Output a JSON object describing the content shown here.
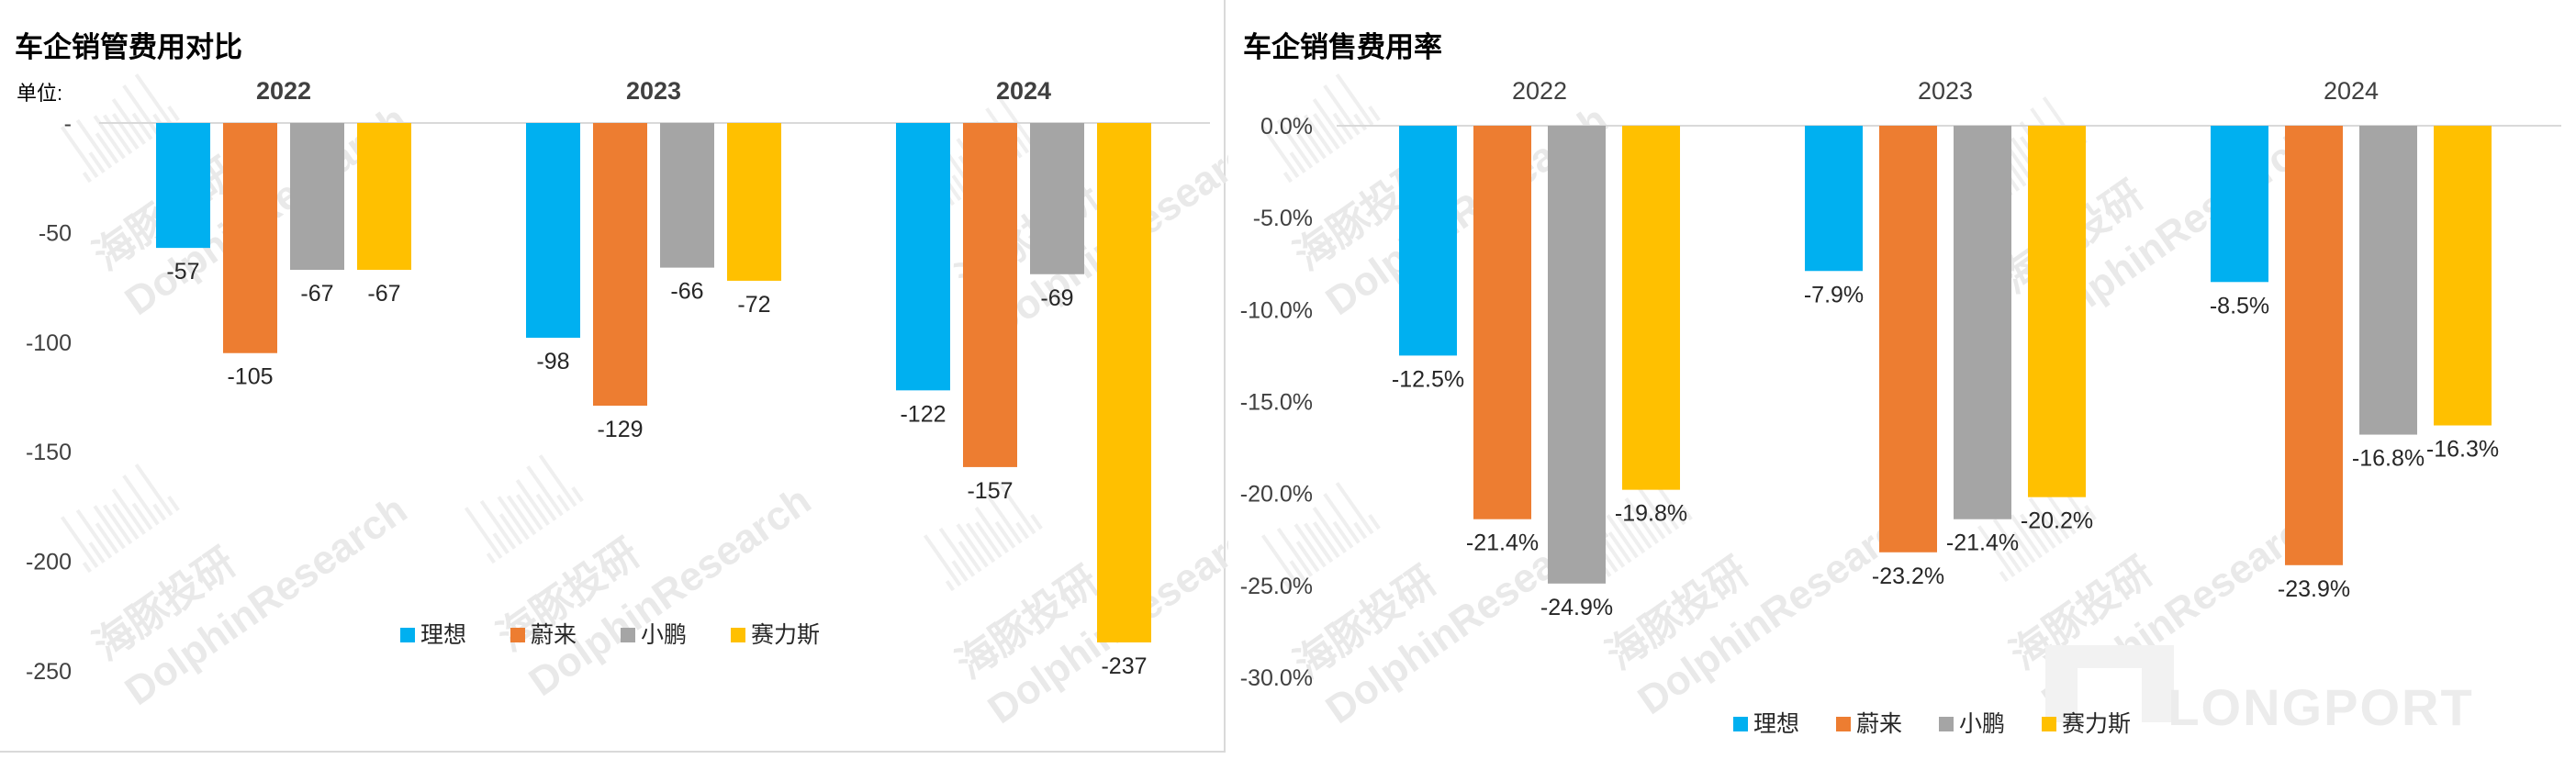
{
  "chart_data": [
    {
      "type": "bar",
      "title": "车企销管费用对比",
      "unit_label": "单位:",
      "groups": [
        "2022",
        "2023",
        "2024"
      ],
      "series": [
        {
          "name": "理想",
          "color": "#00b0f0",
          "values": [
            -57,
            -98,
            -122
          ],
          "labels": [
            "-57",
            "-98",
            "-122"
          ]
        },
        {
          "name": "蔚来",
          "color": "#ed7d31",
          "values": [
            -105,
            -129,
            -157
          ],
          "labels": [
            "-105",
            "-129",
            "-157"
          ]
        },
        {
          "name": "小鹏",
          "color": "#a5a5a5",
          "values": [
            -67,
            -66,
            -69
          ],
          "labels": [
            "-67",
            "-66",
            "-69"
          ]
        },
        {
          "name": "赛力斯",
          "color": "#ffc000",
          "values": [
            -67,
            -72,
            -237
          ],
          "labels": [
            "-67",
            "-72",
            "-237"
          ]
        }
      ],
      "ylim": [
        -250,
        0
      ],
      "yticks": [
        0,
        -50,
        -100,
        -150,
        -200,
        -250
      ],
      "ytick_labels": [
        "-",
        "-50",
        "-100",
        "-150",
        "-200",
        "-250"
      ],
      "legend_position": "bottom-center",
      "grid": false
    },
    {
      "type": "bar",
      "title": "车企销售费用率",
      "groups": [
        "2022",
        "2023",
        "2024"
      ],
      "series": [
        {
          "name": "理想",
          "color": "#00b0f0",
          "values": [
            -12.5,
            -7.9,
            -8.5
          ],
          "labels": [
            "-12.5%",
            "-7.9%",
            "-8.5%"
          ]
        },
        {
          "name": "蔚来",
          "color": "#ed7d31",
          "values": [
            -21.4,
            -23.2,
            -23.9
          ],
          "labels": [
            "-21.4%",
            "-23.2%",
            "-23.9%"
          ]
        },
        {
          "name": "小鹏",
          "color": "#a5a5a5",
          "values": [
            -24.9,
            -21.4,
            -16.8
          ],
          "labels": [
            "-24.9%",
            "-21.4%",
            "-16.8%"
          ]
        },
        {
          "name": "赛力斯",
          "color": "#ffc000",
          "values": [
            -19.8,
            -20.2,
            -16.3
          ],
          "labels": [
            "-19.8%",
            "-20.2%",
            "-16.3%"
          ]
        }
      ],
      "ylim": [
        -30,
        0
      ],
      "yticks": [
        0,
        -5,
        -10,
        -15,
        -20,
        -25,
        -30
      ],
      "ytick_labels": [
        "0.0%",
        "-5.0%",
        "-10.0%",
        "-15.0%",
        "-20.0%",
        "-25.0%",
        "-30.0%"
      ],
      "legend_position": "bottom-center",
      "grid": false
    }
  ],
  "watermarks": {
    "cn": "海豚投研",
    "en": "DolphinResearch",
    "brand": "LONGPORT"
  }
}
